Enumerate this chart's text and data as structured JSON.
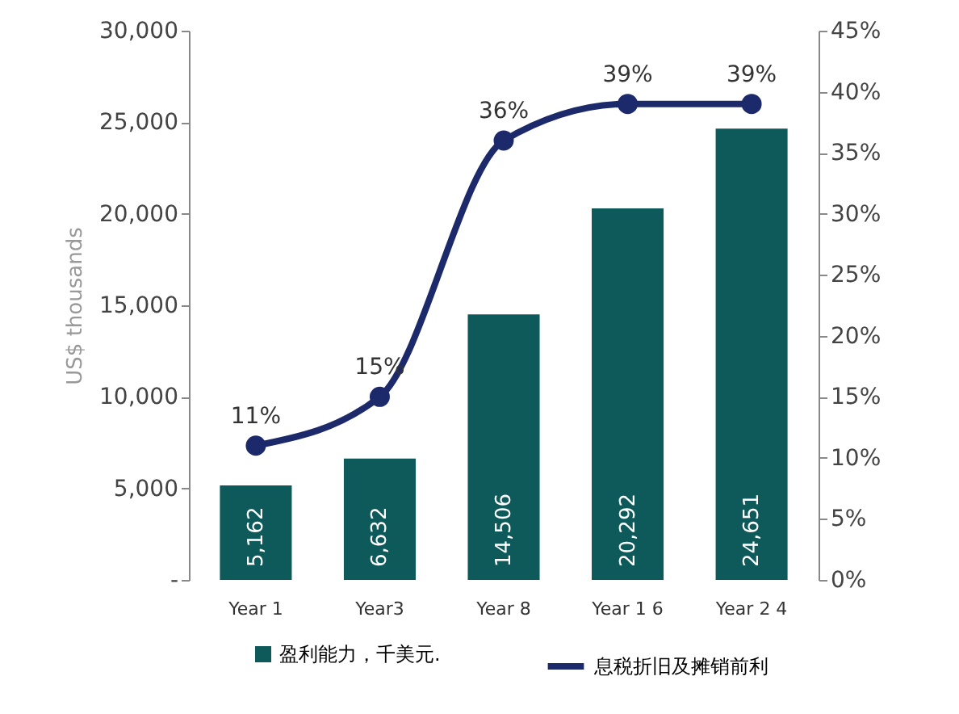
{
  "chart_data": {
    "type": "bar",
    "categories": [
      "Year  1",
      "Year3",
      "Year  8",
      "Year  1 6",
      "Year  2 4"
    ],
    "ylabel": "US$  thousands",
    "ylim": [
      0,
      30000
    ],
    "yticks": [
      {
        "value": 0,
        "label": "-"
      },
      {
        "value": 5000,
        "label": "5,000"
      },
      {
        "value": 10000,
        "label": "10,000"
      },
      {
        "value": 15000,
        "label": "15,000"
      },
      {
        "value": 20000,
        "label": "20,000"
      },
      {
        "value": 25000,
        "label": "25,000"
      },
      {
        "value": 30000,
        "label": "30,000"
      }
    ],
    "y2lim": [
      0,
      45
    ],
    "y2ticks": [
      {
        "value": 0,
        "label": "0%"
      },
      {
        "value": 5,
        "label": "5%"
      },
      {
        "value": 10,
        "label": "10%"
      },
      {
        "value": 15,
        "label": "15%"
      },
      {
        "value": 20,
        "label": "20%"
      },
      {
        "value": 25,
        "label": "25%"
      },
      {
        "value": 30,
        "label": "30%"
      },
      {
        "value": 35,
        "label": "35%"
      },
      {
        "value": 40,
        "label": "40%"
      },
      {
        "value": 45,
        "label": "45%"
      }
    ],
    "legend": "bottom",
    "grid": false,
    "series": [
      {
        "name": "盈利能力，千美元.",
        "color": "#0e5a5a",
        "values": [
          5162,
          6632,
          14506,
          20292,
          24651
        ],
        "value_labels": [
          "5,162",
          "6,632",
          "14,506",
          "20,292",
          "24,651"
        ]
      },
      {
        "name": "息税折旧及摊销前利",
        "type": "line",
        "axis": "y2",
        "color": "#1c2a6b",
        "marker": "circle",
        "values": [
          11,
          15,
          36,
          39,
          39
        ],
        "value_labels": [
          "11%",
          "15%",
          "36%",
          "39%",
          "39%"
        ]
      }
    ]
  }
}
